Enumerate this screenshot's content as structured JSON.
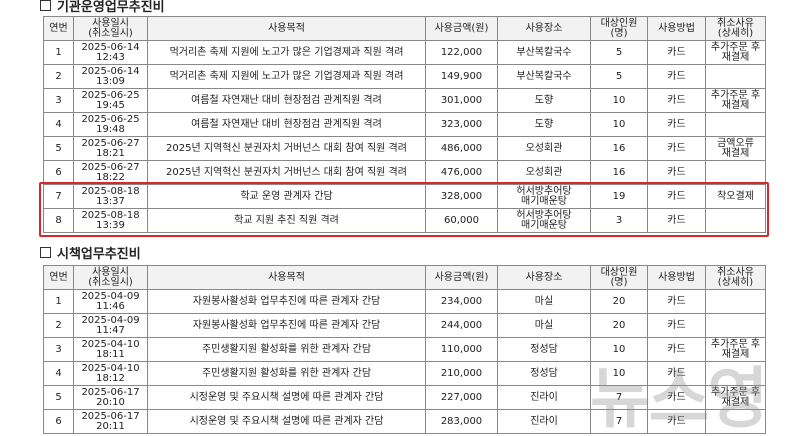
{
  "sections": [
    {
      "title": "기관운영업무추진비",
      "headers": [
        "연번",
        "사용일시\n(취소일시)",
        "사용목적",
        "사용금액(원)",
        "사용장소",
        "대상인원(명)",
        "사용방법",
        "취소사유\n(상세히)"
      ],
      "rows": [
        [
          "1",
          "2025-06-14\n12:43",
          "먹거리촌 축제 지원에 노고가 많은 기업경제과 직원 격려",
          "122,000",
          "부산복칼국수",
          "5",
          "카드",
          "추가주문 후\n재결제"
        ],
        [
          "2",
          "2025-06-14\n13:09",
          "먹거리촌 축제 지원에 노고가 많은 기업경제과 직원 격려",
          "149,900",
          "부산복칼국수",
          "5",
          "카드",
          null
        ],
        [
          "3",
          "2025-06-25\n19:45",
          "여름철 자연재난 대비 현장점검 관계직원 격려",
          "301,000",
          "도향",
          "10",
          "카드",
          "추가주문 후\n재결제"
        ],
        [
          "4",
          "2025-06-25\n19:48",
          "여름철 자연재난 대비 현장점검 관계직원 격려",
          "323,000",
          "도향",
          "10",
          "카드",
          null
        ],
        [
          "5",
          "2025-06-27\n18:21",
          "2025년 지역혁신 분권자치 거버넌스 대회 참여 직원 격려",
          "486,000",
          "오성회관",
          "16",
          "카드",
          "금액오류\n재결제"
        ],
        [
          "6",
          "2025-06-27\n18:22",
          "2025년 지역혁신 분권자치 거버넌스 대회 참여 직원 격려",
          "476,000",
          "오성회관",
          "16",
          "카드",
          null
        ],
        [
          "7",
          "2025-08-18\n13:37",
          "학교 운영 관계자 간담",
          "328,000",
          "허서방추어탕\n매기매운탕",
          "19",
          "카드",
          "착오결제"
        ],
        [
          "8",
          "2025-08-18\n13:39",
          "학교 지원 추진 직원 격려",
          "60,000",
          "허서방추어탕\n매기매운탕",
          "3",
          "카드",
          null
        ]
      ]
    },
    {
      "title": "시책업무추진비",
      "headers": [
        "연번",
        "사용일시\n(취소일시)",
        "사용목적",
        "사용금액(원)",
        "사용장소",
        "대상인원(명)",
        "사용방법",
        "취소사유\n(상세히)"
      ],
      "rows": [
        [
          "1",
          "2025-04-09\n11:46",
          "자원봉사활성화 업무추진에 따른 관계자 간담",
          "234,000",
          "마실",
          "20",
          "카드",
          null
        ],
        [
          "2",
          "2025-04-09\n11:47",
          "자원봉사활성화 업무추진에 따른 관계자 간담",
          "244,000",
          "마실",
          "20",
          "카드",
          null
        ],
        [
          "3",
          "2025-04-10\n18:11",
          "주민생활지원 활성화를 위한 관계자 간담",
          "110,000",
          "정성담",
          "10",
          "카드",
          "추가주문 후\n재결제"
        ],
        [
          "4",
          "2025-04-10\n18:12",
          "주민생활지원 활성화를 위한 관계자 간담",
          "210,000",
          "정성담",
          "10",
          "카드",
          null
        ],
        [
          "5",
          "2025-06-17\n20:10",
          "시정운영 및 주요시책 설명에 따른 관계자 간담",
          "227,000",
          "진라이",
          "7",
          "카드",
          "추가주문 후\n재결제"
        ],
        [
          "6",
          "2025-06-17\n20:11",
          "시정운영 및 주요시책 설명에 따른 관계자 간담",
          "283,000",
          "진라이",
          "7",
          "카드",
          null
        ]
      ]
    }
  ],
  "watermark": "뉴스영"
}
